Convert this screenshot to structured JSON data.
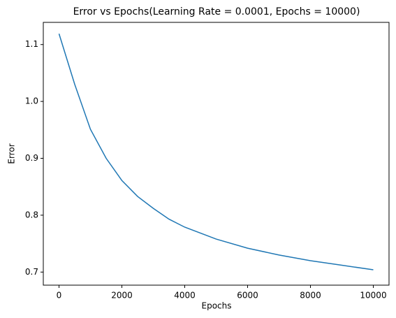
{
  "chart_data": {
    "type": "line",
    "title": "Error vs Epochs(Learning Rate = 0.0001, Epochs = 10000)",
    "x_label": "Epochs",
    "y_label": "Error",
    "x": [
      0,
      500,
      1000,
      1500,
      2000,
      2500,
      3000,
      3500,
      4000,
      5000,
      6000,
      7000,
      8000,
      9000,
      10000
    ],
    "series": [
      {
        "name": "Error",
        "color": "#1f77b4",
        "values": [
          1.119,
          1.03,
          0.951,
          0.9,
          0.861,
          0.833,
          0.812,
          0.793,
          0.779,
          0.758,
          0.742,
          0.73,
          0.72,
          0.712,
          0.704
        ]
      }
    ],
    "xlim": [
      -500,
      10500
    ],
    "xticks": [
      0,
      2000,
      4000,
      6000,
      8000,
      10000
    ],
    "ylim": [
      0.677,
      1.139
    ],
    "yticks": [
      0.7,
      0.8,
      0.9,
      1.0,
      1.1
    ]
  }
}
